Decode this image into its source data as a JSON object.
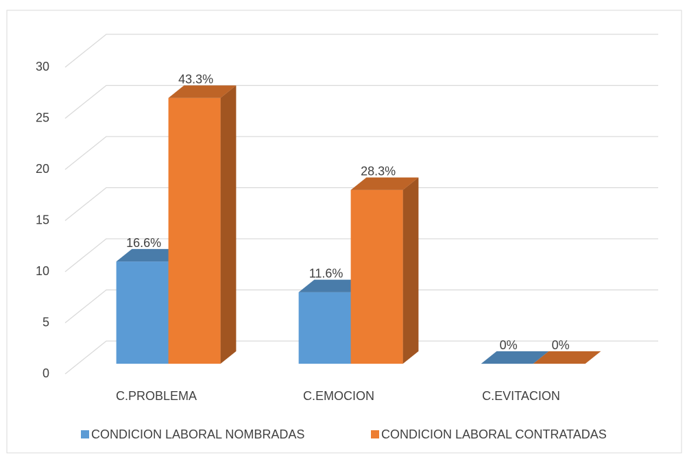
{
  "chart_data": {
    "type": "bar3d",
    "categories": [
      "C.PROBLEMA",
      "C.EMOCION",
      "C.EVITACION"
    ],
    "series": [
      {
        "name": "CONDICION LABORAL NOMBRADAS",
        "color": "#5b9bd5",
        "values": [
          10,
          7,
          0
        ],
        "value_labels": [
          "16.6%",
          "11.6%",
          "0%"
        ]
      },
      {
        "name": "CONDICION LABORAL CONTRATADAS",
        "color": "#ed7d31",
        "values": [
          26,
          17,
          0
        ],
        "value_labels": [
          "43.3%",
          "28.3%",
          "0%"
        ]
      }
    ],
    "ylim": [
      0,
      30
    ],
    "yticks": [
      0,
      5,
      10,
      15,
      20,
      25,
      30
    ],
    "grid": true,
    "legend": "bottom"
  }
}
